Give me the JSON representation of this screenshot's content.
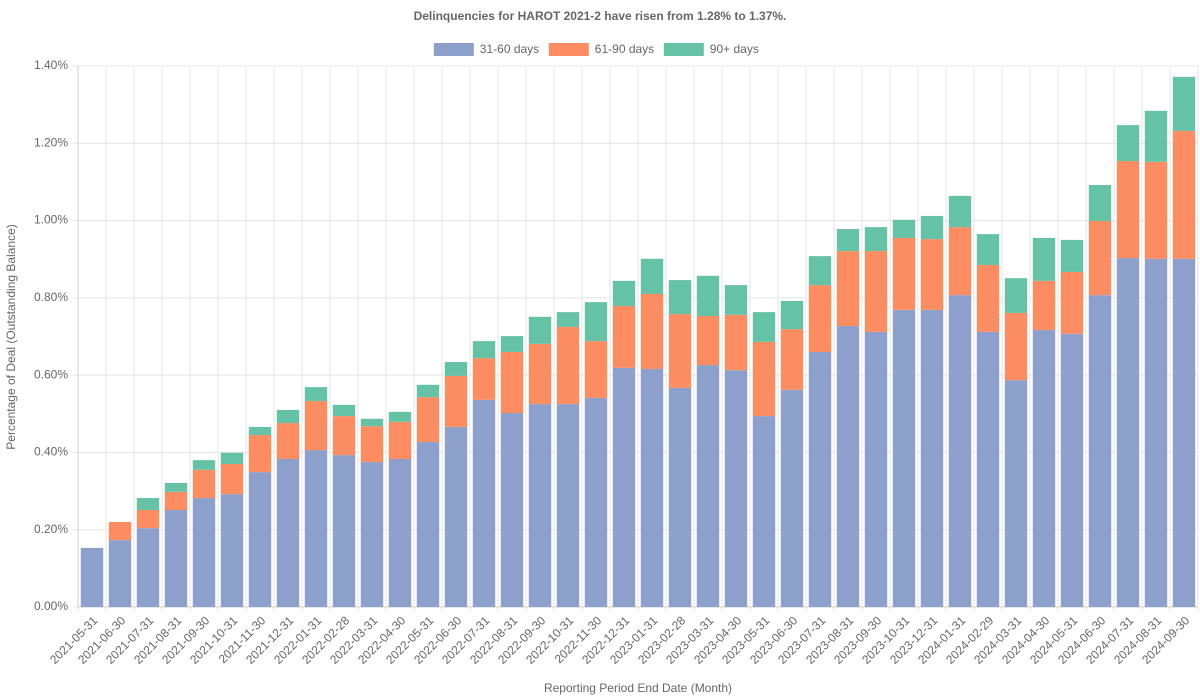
{
  "chart_data": {
    "type": "stacked_bar",
    "title": "Delinquencies for HAROT 2021-2 have risen from 1.28% to 1.37%.",
    "x_label": "Reporting Period End Date (Month)",
    "y_label": "Percentage of Deal (Outstanding Balance)",
    "categories": [
      "2021-05-31",
      "2021-06-30",
      "2021-07-31",
      "2021-08-31",
      "2021-09-30",
      "2021-10-31",
      "2021-11-30",
      "2021-12-31",
      "2022-01-31",
      "2022-02-28",
      "2022-03-31",
      "2022-04-30",
      "2022-05-31",
      "2022-06-30",
      "2022-07-31",
      "2022-08-31",
      "2022-09-30",
      "2022-10-31",
      "2022-11-30",
      "2022-12-31",
      "2023-01-31",
      "2023-02-28",
      "2023-03-31",
      "2023-04-30",
      "2023-05-31",
      "2023-06-30",
      "2023-07-31",
      "2023-08-31",
      "2023-09-30",
      "2023-10-31",
      "2023-12-31",
      "2024-01-31",
      "2024-02-29",
      "2024-03-31",
      "2024-04-30",
      "2024-05-31",
      "2024-06-30",
      "2024-07-31",
      "2024-08-31",
      "2024-09-30"
    ],
    "series": [
      {
        "name": "31-60 days",
        "color": "#8da0cb",
        "values": [
          0.153,
          0.173,
          0.204,
          0.251,
          0.282,
          0.292,
          0.349,
          0.383,
          0.406,
          0.393,
          0.375,
          0.383,
          0.427,
          0.466,
          0.536,
          0.502,
          0.525,
          0.525,
          0.541,
          0.619,
          0.616,
          0.567,
          0.626,
          0.613,
          0.494,
          0.562,
          0.66,
          0.727,
          0.712,
          0.769,
          0.769,
          0.807,
          0.712,
          0.587,
          0.717,
          0.707,
          0.807,
          0.903,
          0.901,
          0.901
        ]
      },
      {
        "name": "61-90 days",
        "color": "#fc8d62",
        "values": [
          0,
          0.047,
          0.047,
          0.047,
          0.073,
          0.078,
          0.096,
          0.093,
          0.127,
          0.101,
          0.093,
          0.096,
          0.116,
          0.132,
          0.108,
          0.158,
          0.156,
          0.2,
          0.147,
          0.16,
          0.194,
          0.191,
          0.127,
          0.143,
          0.192,
          0.157,
          0.173,
          0.194,
          0.209,
          0.186,
          0.183,
          0.176,
          0.173,
          0.174,
          0.127,
          0.16,
          0.192,
          0.251,
          0.251,
          0.331
        ]
      },
      {
        "name": "90+ days",
        "color": "#66c2a5",
        "values": [
          0,
          0,
          0.031,
          0.023,
          0.025,
          0.029,
          0.021,
          0.034,
          0.036,
          0.029,
          0.019,
          0.026,
          0.032,
          0.036,
          0.044,
          0.041,
          0.07,
          0.038,
          0.101,
          0.065,
          0.091,
          0.088,
          0.104,
          0.077,
          0.077,
          0.073,
          0.075,
          0.057,
          0.062,
          0.047,
          0.06,
          0.081,
          0.08,
          0.09,
          0.111,
          0.083,
          0.093,
          0.093,
          0.132,
          0.14
        ]
      }
    ],
    "ylim": [
      0,
      1.4
    ],
    "yticks": [
      {
        "value": 0,
        "label": "0.00%"
      },
      {
        "value": 0.2,
        "label": "0.20%"
      },
      {
        "value": 0.4,
        "label": "0.40%"
      },
      {
        "value": 0.6,
        "label": "0.60%"
      },
      {
        "value": 0.8,
        "label": "0.80%"
      },
      {
        "value": 1.0,
        "label": "1.00%"
      },
      {
        "value": 1.2,
        "label": "1.20%"
      },
      {
        "value": 1.4,
        "label": "1.40%"
      }
    ],
    "grid": true,
    "legend": "top"
  }
}
